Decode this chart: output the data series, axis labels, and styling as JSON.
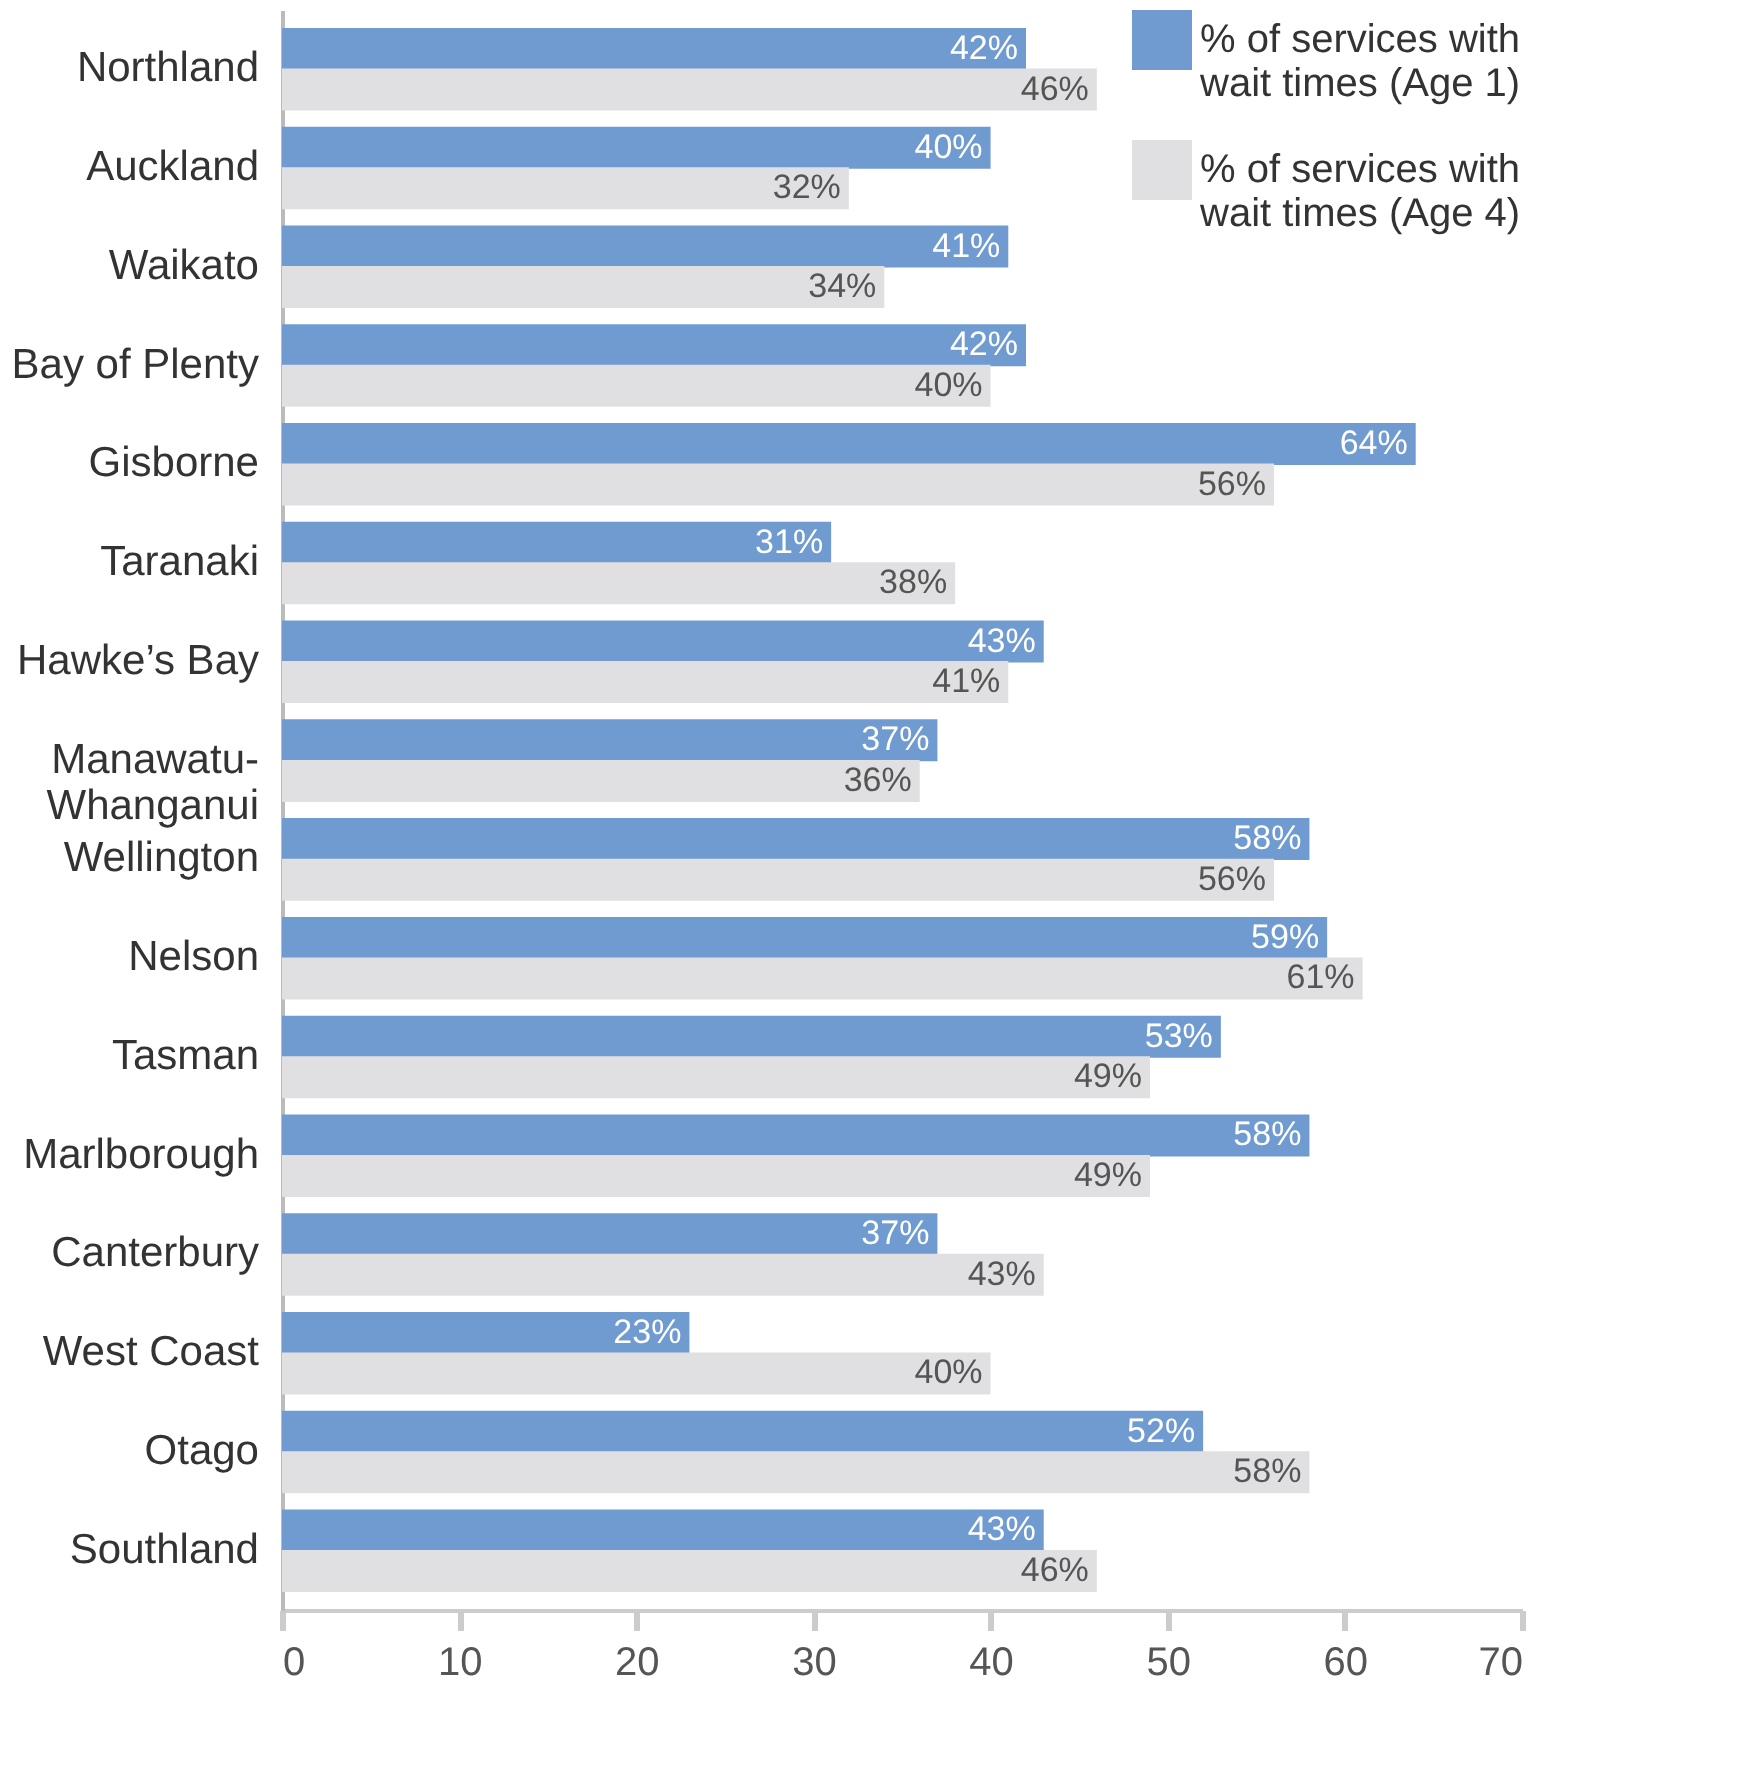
{
  "chart_data": {
    "type": "bar",
    "orientation": "horizontal",
    "categories": [
      "Northland",
      "Auckland",
      "Waikato",
      "Bay of Plenty",
      "Gisborne",
      "Taranaki",
      "Hawke’s Bay",
      "Manawatu-Whanganui",
      "Wellington",
      "Nelson",
      "Tasman",
      "Marlborough",
      "Canterbury",
      "West Coast",
      "Otago",
      "Southland"
    ],
    "series": [
      {
        "name": "% of services with wait times (Age 1)",
        "color": "#6f9bd1",
        "values": [
          42,
          40,
          41,
          42,
          64,
          31,
          43,
          37,
          58,
          59,
          53,
          58,
          37,
          23,
          52,
          43
        ],
        "value_labels": [
          "42%",
          "40%",
          "41%",
          "42%",
          "64%",
          "31%",
          "43%",
          "37%",
          "58%",
          "59%",
          "53%",
          "58%",
          "37%",
          "23%",
          "52%",
          "43%"
        ]
      },
      {
        "name": "% of services with wait times (Age 4)",
        "color": "#e0e0e2",
        "values": [
          46,
          32,
          34,
          40,
          56,
          38,
          41,
          36,
          56,
          61,
          49,
          49,
          43,
          40,
          58,
          46
        ],
        "value_labels": [
          "46%",
          "32%",
          "34%",
          "40%",
          "56%",
          "38%",
          "41%",
          "36%",
          "56%",
          "61%",
          "49%",
          "49%",
          "43%",
          "40%",
          "58%",
          "46%"
        ]
      }
    ],
    "xlim": [
      0,
      70
    ],
    "xticks": [
      0,
      10,
      20,
      30,
      40,
      50,
      60,
      70
    ],
    "grid": false,
    "legend": "top right"
  }
}
